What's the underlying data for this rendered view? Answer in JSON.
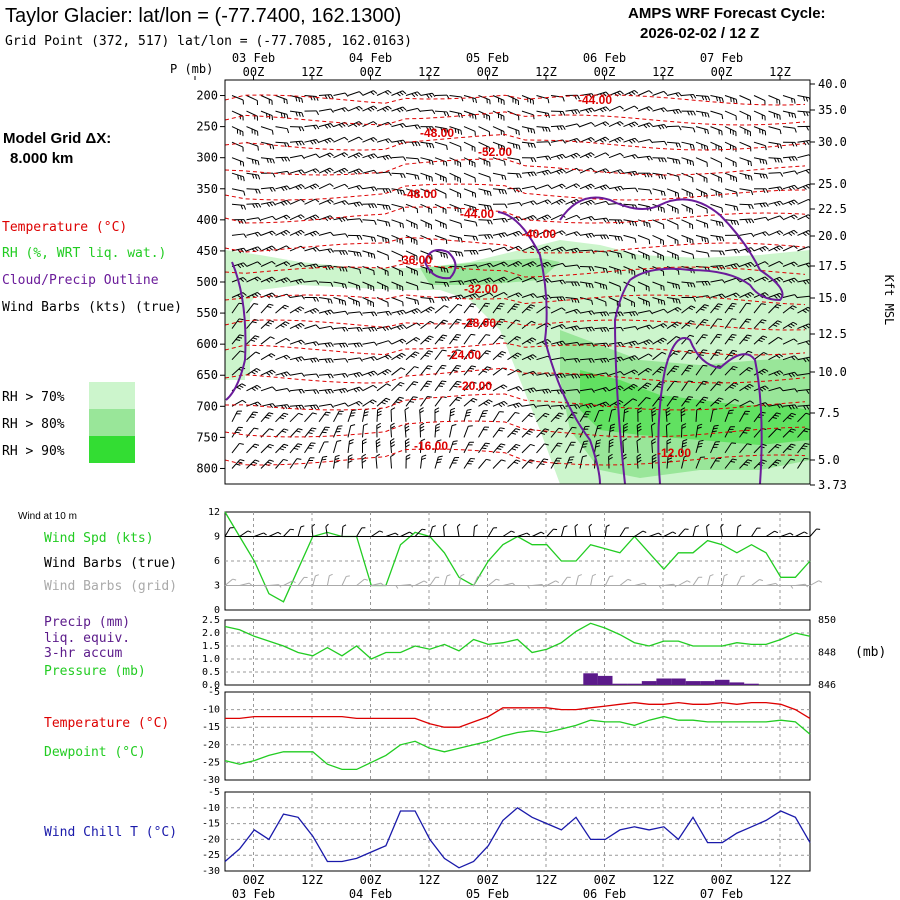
{
  "header": {
    "title": "Taylor Glacier:  lat/lon = (-77.7400, 162.1300)",
    "subtitle": "Grid Point (372, 517) lat/lon = (-77.7085, 162.0163)",
    "cycle_label": "AMPS WRF Forecast Cycle:",
    "cycle_value": "2026-02-02 / 12  Z"
  },
  "left_panel": {
    "grid_label": "Model Grid ΔX:",
    "grid_value": "8.000 km",
    "temperature": "Temperature (°C)",
    "rh": "RH (%, WRT liq. wat.)",
    "cloud": "Cloud/Precip Outline",
    "wind": "Wind Barbs (kts) (true)",
    "rh_levels": [
      "RH > 70%",
      "RH > 80%",
      "RH > 90%"
    ]
  },
  "time_axis": {
    "hours": [
      "00Z",
      "12Z",
      "00Z",
      "12Z",
      "00Z",
      "12Z",
      "00Z",
      "12Z",
      "00Z",
      "12Z"
    ],
    "dates": [
      "03 Feb",
      "04 Feb",
      "05 Feb",
      "06 Feb",
      "07 Feb"
    ]
  },
  "colors": {
    "temperature": "#dd0000",
    "rh_70": "#ccf5cc",
    "rh_80": "#99e699",
    "rh_90": "#33dd33",
    "cloud": "#6a1b9a",
    "wind_speed": "#22cc22",
    "wind_grid": "#aaaaaa",
    "pressure": "#22cc22",
    "precip": "#5b1a8a",
    "wind_chill": "#1a1aaa"
  },
  "upper_panel": {
    "p_axis_label": "P (mb)",
    "right_axis_label": "Kft MSL",
    "pressure_ticks": [
      "200",
      "250",
      "300",
      "350",
      "400",
      "450",
      "500",
      "550",
      "600",
      "650",
      "700",
      "750",
      "800"
    ],
    "height_ticks": [
      "40.0",
      "35.0",
      "30.0",
      "25.0",
      "22.5",
      "20.0",
      "17.5",
      "15.0",
      "12.5",
      "10.0",
      "7.5",
      "5.0",
      "3.73"
    ],
    "temp_labels": [
      "-44.00",
      "-48.00",
      "-52.00",
      "-48.00",
      "-44.00",
      "-40.00",
      "-36.00",
      "-32.00",
      "-28.00",
      "-24.00",
      "-20.00",
      "-16.00",
      "-12.00"
    ]
  },
  "wind_panel": {
    "heading": "Wind at 10 m",
    "labels": [
      "Wind Spd (kts)",
      "Wind Barbs (true)",
      "Wind Barbs (grid)"
    ],
    "y_ticks": [
      "12",
      "9",
      "6",
      "3",
      "0"
    ]
  },
  "precip_panel": {
    "labels": [
      "Precip (mm)",
      "liq. equiv.",
      "3-hr accum",
      "Pressure (mb)"
    ],
    "left_ticks": [
      "2.5",
      "2.0",
      "1.5",
      "1.0",
      "0.5",
      "0.0"
    ],
    "right_ticks": [
      "850",
      "848",
      "846"
    ],
    "right_unit": "(mb)"
  },
  "temp_panel": {
    "labels": [
      "Temperature (°C)",
      "Dewpoint (°C)"
    ],
    "y_ticks": [
      "-5",
      "-10",
      "-15",
      "-20",
      "-25",
      "-30"
    ]
  },
  "chill_panel": {
    "label": "Wind Chill T (°C)",
    "y_ticks": [
      "-5",
      "-10",
      "-15",
      "-20",
      "-25",
      "-30"
    ]
  },
  "chart_data": {
    "type": "line",
    "forecast_hours": [
      0,
      3,
      6,
      9,
      12,
      15,
      18,
      21,
      24,
      27,
      30,
      33,
      36,
      39,
      42,
      45,
      48,
      51,
      54,
      57,
      60,
      63,
      66,
      69,
      72,
      75,
      78,
      81,
      84,
      87,
      90,
      93,
      96,
      99,
      102,
      105,
      108,
      111,
      114,
      117,
      120
    ],
    "wind_speed_kts": {
      "name": "Wind Spd (kts)",
      "ylim": [
        0,
        12
      ],
      "values": [
        12,
        9,
        6,
        2,
        1,
        5,
        9,
        9.5,
        9,
        9,
        3,
        3,
        8,
        9.5,
        9,
        7,
        4,
        3,
        6,
        8,
        9,
        8,
        8,
        6,
        6,
        8,
        7.5,
        7,
        9,
        7,
        5,
        7,
        7,
        8.5,
        8,
        7,
        8,
        7,
        4,
        4,
        6
      ]
    },
    "pressure_mb": {
      "name": "Pressure (mb)",
      "ylim": [
        846,
        850
      ],
      "values": [
        849.6,
        849.4,
        849.0,
        848.7,
        848.4,
        848.0,
        847.8,
        848.3,
        847.8,
        848.4,
        847.6,
        848.0,
        848.0,
        848.4,
        848.2,
        848.5,
        848.1,
        848.8,
        848.5,
        848.6,
        848.8,
        848.0,
        848.2,
        848.6,
        849.3,
        849.8,
        849.5,
        849.1,
        848.6,
        848.4,
        848.7,
        848.7,
        848.4,
        848.4,
        848.4,
        848.6,
        848.5,
        848.5,
        848.8,
        849.2,
        849.0
      ]
    },
    "precip_mm": {
      "name": "Precip (mm)",
      "ylim": [
        0,
        2.5
      ],
      "values": [
        0,
        0,
        0,
        0,
        0,
        0,
        0,
        0,
        0,
        0,
        0,
        0,
        0,
        0,
        0,
        0,
        0,
        0,
        0,
        0,
        0,
        0,
        0,
        0,
        0,
        0.45,
        0.35,
        0.05,
        0.05,
        0.15,
        0.25,
        0.25,
        0.15,
        0.15,
        0.2,
        0.1,
        0.05,
        0,
        0,
        0,
        0
      ]
    },
    "temperature_c": {
      "name": "Temperature (°C)",
      "ylim": [
        -30,
        -5
      ],
      "values": [
        -12.5,
        -12.5,
        -12,
        -12,
        -12,
        -12,
        -12,
        -12,
        -12,
        -12.5,
        -12.5,
        -12.5,
        -12.5,
        -12.5,
        -14,
        -15,
        -15,
        -13.5,
        -12,
        -9.5,
        -9.5,
        -9.5,
        -9.5,
        -10,
        -10,
        -9.5,
        -9,
        -8.5,
        -8,
        -8.5,
        -8.5,
        -8,
        -8.5,
        -8.5,
        -8,
        -8.5,
        -8,
        -8,
        -8.5,
        -10,
        -12.5
      ]
    },
    "dewpoint_c": {
      "name": "Dewpoint (°C)",
      "ylim": [
        -30,
        -5
      ],
      "values": [
        -24.5,
        -25.5,
        -24.5,
        -23,
        -22,
        -22,
        -22,
        -25.5,
        -27,
        -27,
        -25,
        -23,
        -20,
        -19,
        -21,
        -22,
        -21,
        -20,
        -19,
        -17.5,
        -16.5,
        -16,
        -16.5,
        -15.5,
        -14.5,
        -13,
        -13.5,
        -13.5,
        -14.5,
        -13,
        -12,
        -13,
        -13,
        -13.5,
        -13.5,
        -13.5,
        -13.5,
        -13.5,
        -13,
        -13.5,
        -17
      ]
    },
    "wind_chill_c": {
      "name": "Wind Chill T (°C)",
      "ylim": [
        -30,
        -5
      ],
      "values": [
        -27,
        -23,
        -17,
        -20,
        -12,
        -13,
        -19,
        -27,
        -27,
        -26,
        -24,
        -22,
        -11,
        -11,
        -20,
        -26,
        -29,
        -27,
        -22,
        -14,
        -10,
        -13,
        -15,
        -17,
        -13,
        -20,
        -20,
        -17,
        -16,
        -17,
        -16,
        -20,
        -13,
        -21,
        -21,
        -18,
        -16,
        -14,
        -11,
        -13,
        -21
      ]
    },
    "upper_air": {
      "type": "heatmap",
      "pressure_mb": [
        200,
        250,
        300,
        350,
        400,
        450,
        500,
        550,
        600,
        650,
        700,
        750,
        800
      ],
      "isotherms_c": [
        -52,
        -48,
        -44,
        -40,
        -36,
        -32,
        -28,
        -24,
        -20,
        -16,
        -12
      ],
      "rh_thresholds_pct": [
        70,
        80,
        90
      ],
      "wind_barbs_kts_sample": [
        5,
        10,
        15,
        20,
        25,
        30,
        35
      ]
    }
  }
}
